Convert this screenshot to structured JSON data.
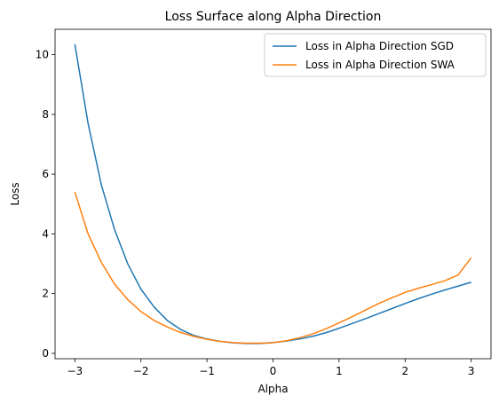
{
  "chart_data": {
    "type": "line",
    "title": "Loss Surface along Alpha Direction",
    "xlabel": "Alpha",
    "ylabel": "Loss",
    "xlim": [
      -3.3,
      3.3
    ],
    "ylim": [
      -0.18,
      10.85
    ],
    "xticks": [
      -3,
      -2,
      -1,
      0,
      1,
      2,
      3
    ],
    "xtick_labels": [
      "−3",
      "−2",
      "−1",
      "0",
      "1",
      "2",
      "3"
    ],
    "yticks": [
      0,
      2,
      4,
      6,
      8,
      10
    ],
    "ytick_labels": [
      "0",
      "2",
      "4",
      "6",
      "8",
      "10"
    ],
    "grid": false,
    "legend_position": "top-right",
    "x": [
      -3.0,
      -2.8,
      -2.6,
      -2.4,
      -2.2,
      -2.0,
      -1.8,
      -1.6,
      -1.4,
      -1.2,
      -1.0,
      -0.8,
      -0.6,
      -0.4,
      -0.2,
      0.0,
      0.2,
      0.4,
      0.6,
      0.8,
      1.0,
      1.2,
      1.4,
      1.6,
      1.8,
      2.0,
      2.2,
      2.4,
      2.6,
      2.8,
      3.0
    ],
    "series": [
      {
        "name": "Loss in Alpha Direction SGD",
        "color": "#1f77b4",
        "values": [
          10.35,
          7.7,
          5.65,
          4.15,
          3.0,
          2.15,
          1.55,
          1.1,
          0.8,
          0.6,
          0.48,
          0.4,
          0.35,
          0.33,
          0.33,
          0.36,
          0.41,
          0.48,
          0.57,
          0.69,
          0.84,
          1.0,
          1.16,
          1.33,
          1.5,
          1.67,
          1.83,
          1.98,
          2.12,
          2.25,
          2.38
        ]
      },
      {
        "name": "Loss in Alpha Direction SWA",
        "color": "#ff7f0e",
        "values": [
          5.4,
          4.0,
          3.05,
          2.32,
          1.8,
          1.4,
          1.1,
          0.88,
          0.7,
          0.57,
          0.47,
          0.4,
          0.36,
          0.34,
          0.34,
          0.36,
          0.42,
          0.52,
          0.65,
          0.82,
          1.02,
          1.23,
          1.45,
          1.67,
          1.86,
          2.04,
          2.18,
          2.3,
          2.43,
          2.62,
          3.2
        ]
      }
    ]
  }
}
